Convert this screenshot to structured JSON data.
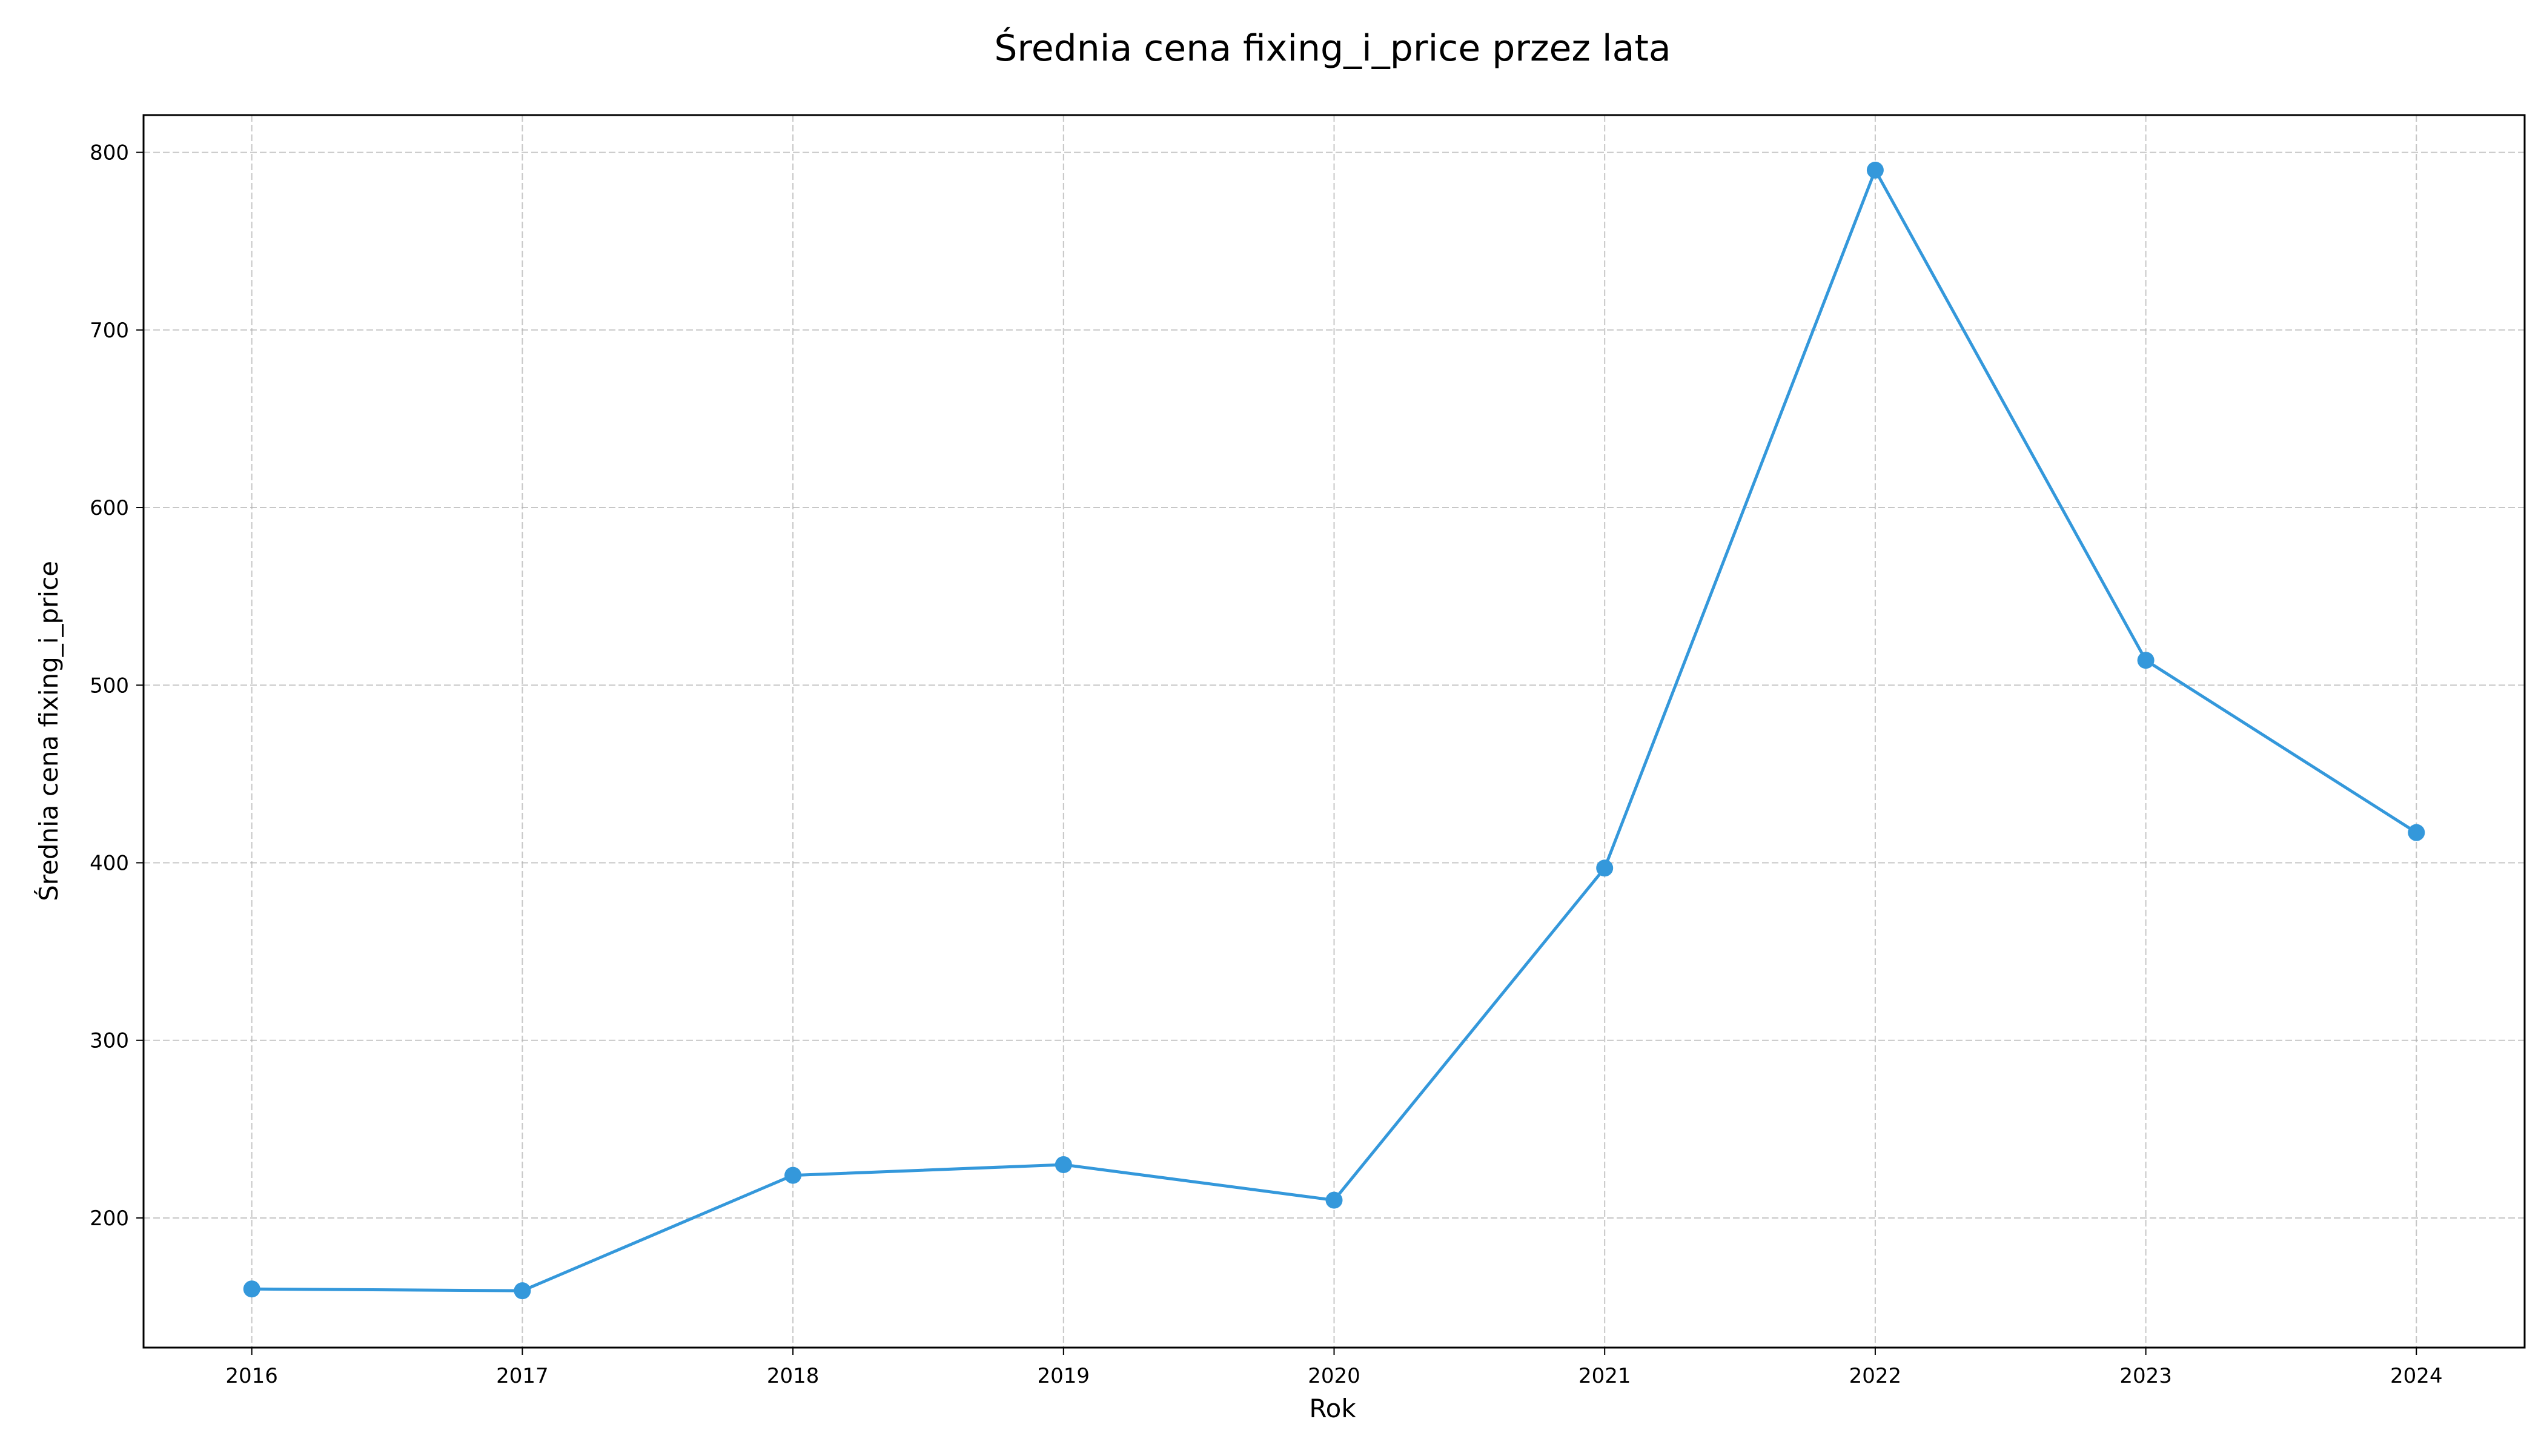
{
  "chart_data": {
    "type": "line",
    "title": "Średnia cena fixing_i_price przez lata",
    "xlabel": "Rok",
    "ylabel": "Średnia cena fixing_i_price",
    "x": [
      2016,
      2017,
      2018,
      2019,
      2020,
      2021,
      2022,
      2023,
      2024
    ],
    "x_tick_labels": [
      "2016",
      "2017",
      "2018",
      "2019",
      "2020",
      "2021",
      "2022",
      "2023",
      "2024"
    ],
    "series": [
      {
        "values": [
          160,
          159,
          224,
          230,
          210,
          397,
          790,
          514,
          417
        ],
        "color": "#3498db",
        "marker": "circle"
      }
    ],
    "y_ticks": [
      200,
      300,
      400,
      500,
      600,
      700,
      800
    ],
    "y_tick_labels": [
      "200",
      "300",
      "400",
      "500",
      "600",
      "700",
      "800"
    ],
    "xlim": [
      2015.6,
      2024.4
    ],
    "ylim": [
      127,
      821
    ],
    "grid": true,
    "grid_style": "dashed",
    "legend": "none"
  }
}
